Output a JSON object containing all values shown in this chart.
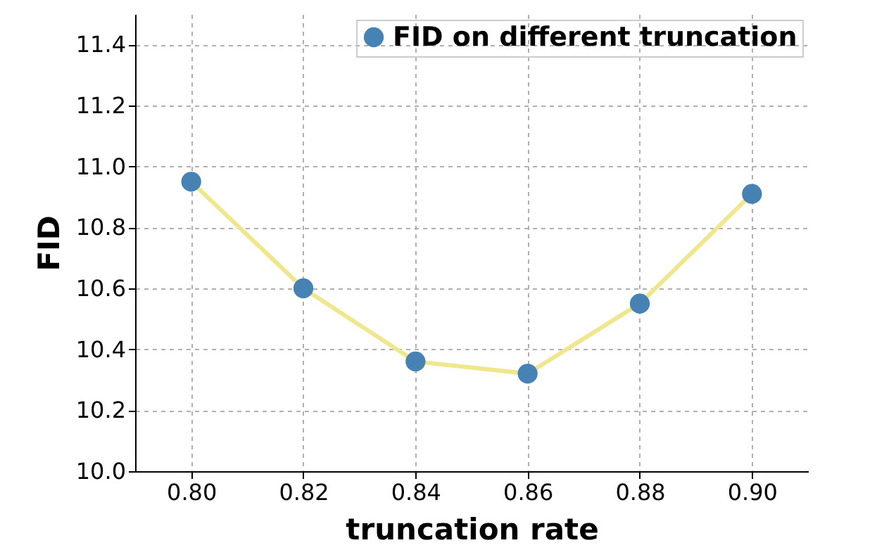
{
  "chart_data": {
    "type": "line",
    "xlabel": "truncation rate",
    "ylabel": "FID",
    "x": [
      0.8,
      0.82,
      0.84,
      0.86,
      0.88,
      0.9
    ],
    "series": [
      {
        "name": "FID on different truncation",
        "color": "#f0e68c",
        "colors": [
          "#4682b4",
          "#4682b4",
          "#4682b4",
          "#4682b4",
          "#4682b4",
          "#4682b4"
        ],
        "values": [
          10.95,
          10.6,
          10.36,
          10.32,
          10.55,
          10.91
        ]
      }
    ],
    "xlim": [
      0.79,
      0.91
    ],
    "xticks": [
      {
        "value": 0.8,
        "label": "0.80"
      },
      {
        "value": 0.82,
        "label": "0.82"
      },
      {
        "value": 0.84,
        "label": "0.84"
      },
      {
        "value": 0.86,
        "label": "0.86"
      },
      {
        "value": 0.88,
        "label": "0.88"
      },
      {
        "value": 0.9,
        "label": "0.90"
      }
    ],
    "ylim": [
      10.0,
      11.5
    ],
    "yticks": [
      {
        "value": 10.0,
        "label": "10.0"
      },
      {
        "value": 10.2,
        "label": "10.2"
      },
      {
        "value": 10.4,
        "label": "10.4"
      },
      {
        "value": 10.6,
        "label": "10.6"
      },
      {
        "value": 10.8,
        "label": "10.8"
      },
      {
        "value": 11.0,
        "label": "11.0"
      },
      {
        "value": 11.2,
        "label": "11.2"
      },
      {
        "value": 11.4,
        "label": "11.4"
      }
    ],
    "grid": true,
    "legend": "top right",
    "marker": "circle",
    "line_style": "solid"
  }
}
